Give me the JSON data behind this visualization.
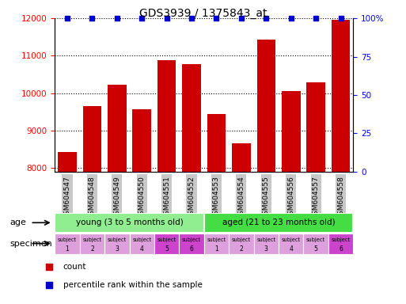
{
  "title": "GDS3939 / 1375843_at",
  "categories": [
    "GSM604547",
    "GSM604548",
    "GSM604549",
    "GSM604550",
    "GSM604551",
    "GSM604552",
    "GSM604553",
    "GSM604554",
    "GSM604555",
    "GSM604556",
    "GSM604557",
    "GSM604558"
  ],
  "count_values": [
    8430,
    9650,
    10230,
    9560,
    10870,
    10780,
    9440,
    8650,
    11420,
    10050,
    10280,
    11950
  ],
  "percentile_values": [
    100,
    100,
    100,
    100,
    100,
    100,
    100,
    100,
    100,
    100,
    100,
    100
  ],
  "bar_color": "#cc0000",
  "percentile_color": "#0000cc",
  "ylim_left": [
    7900,
    12000
  ],
  "ylim_right": [
    0,
    100
  ],
  "yticks_left": [
    8000,
    9000,
    10000,
    11000,
    12000
  ],
  "yticks_right": [
    0,
    25,
    50,
    75,
    100
  ],
  "specimen_colors": [
    "#dda0dd",
    "#dda0dd",
    "#dda0dd",
    "#dda0dd",
    "#cc44cc",
    "#cc44cc",
    "#dda0dd",
    "#dda0dd",
    "#dda0dd",
    "#dda0dd",
    "#dda0dd",
    "#cc44cc"
  ],
  "age_young_color": "#90ee90",
  "age_aged_color": "#44dd44",
  "xtick_bg": "#c8c8c8"
}
